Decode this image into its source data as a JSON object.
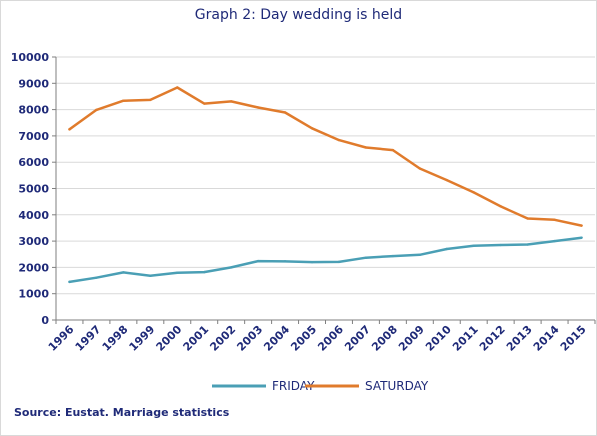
{
  "title": "Graph 2: Day wedding is held",
  "source": "Source: Eustat. Marriage statistics",
  "colors": {
    "friday": "#4a9fb5",
    "saturday": "#e07b2c",
    "text": "#1f2a78",
    "axis": "#7f7f7f",
    "grid": "#d9d9d9"
  },
  "chart_data": {
    "type": "line",
    "title": "Graph 2: Day wedding is held",
    "xlabel": "",
    "ylabel": "",
    "categories": [
      "1996",
      "1997",
      "1998",
      "1999",
      "2000",
      "2001",
      "2002",
      "2003",
      "2004",
      "2005",
      "2006",
      "2007",
      "2008",
      "2009",
      "2010",
      "2011",
      "2012",
      "2013",
      "2014",
      "2015"
    ],
    "ylim": [
      0,
      10000
    ],
    "yticks": [
      "0",
      "1000",
      "2000",
      "3000",
      "4000",
      "5000",
      "6000",
      "7000",
      "8000",
      "9000",
      "10000"
    ],
    "grid": true,
    "legend_position": "bottom",
    "series": [
      {
        "name": "FRIDAY",
        "values": [
          1450,
          1610,
          1810,
          1680,
          1800,
          1820,
          2000,
          2240,
          2230,
          2200,
          2210,
          2370,
          2430,
          2480,
          2700,
          2820,
          2850,
          2870,
          3000,
          3130
        ]
      },
      {
        "name": "SATURDAY",
        "values": [
          7250,
          7990,
          8340,
          8370,
          8840,
          8230,
          8310,
          8080,
          7890,
          7290,
          6840,
          6560,
          6460,
          5760,
          5320,
          4850,
          4320,
          3860,
          3810,
          3590
        ]
      }
    ]
  }
}
